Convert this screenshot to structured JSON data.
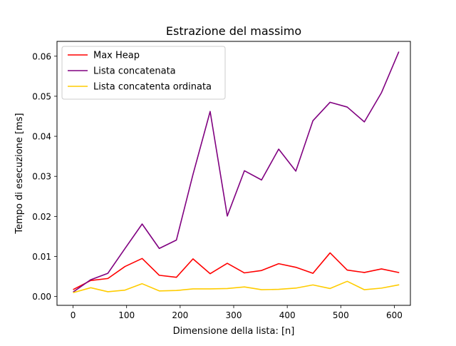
{
  "chart_data": {
    "type": "line",
    "title": "Estrazione del massimo",
    "xlabel": "Dimensione della lista: [n]",
    "ylabel": "Tempo di esecuzione [ms]",
    "xlim": [
      -30,
      630
    ],
    "ylim": [
      -0.0022,
      0.0637
    ],
    "xticks": [
      0,
      100,
      200,
      300,
      400,
      500,
      600
    ],
    "yticks": [
      0.0,
      0.01,
      0.02,
      0.03,
      0.04,
      0.05,
      0.06
    ],
    "ytick_labels": [
      "0.00",
      "0.01",
      "0.02",
      "0.03",
      "0.04",
      "0.05",
      "0.06"
    ],
    "grid": false,
    "legend_position": "top-left",
    "x": [
      1,
      33,
      65,
      97,
      129,
      161,
      193,
      224,
      256,
      288,
      320,
      352,
      384,
      416,
      448,
      480,
      512,
      544,
      576,
      608
    ],
    "series": [
      {
        "name": "Max Heap",
        "color": "#ff0000",
        "values": [
          0.0018,
          0.004,
          0.0045,
          0.0075,
          0.0095,
          0.0053,
          0.0048,
          0.0094,
          0.0057,
          0.0083,
          0.0059,
          0.0065,
          0.0082,
          0.0073,
          0.0058,
          0.0109,
          0.0066,
          0.006,
          0.0069,
          0.006
        ]
      },
      {
        "name": "Lista concatenata",
        "color": "#800080",
        "values": [
          0.0012,
          0.0042,
          0.0058,
          0.012,
          0.0181,
          0.012,
          0.0141,
          0.0305,
          0.0462,
          0.0201,
          0.0314,
          0.0291,
          0.0368,
          0.0313,
          0.0439,
          0.0485,
          0.0473,
          0.0436,
          0.0509,
          0.061
        ]
      },
      {
        "name": "Lista concatenta ordinata",
        "color": "#ffcc00",
        "values": [
          0.001,
          0.0022,
          0.0012,
          0.0016,
          0.0032,
          0.0014,
          0.0015,
          0.0019,
          0.0019,
          0.002,
          0.0024,
          0.0017,
          0.0018,
          0.0021,
          0.0029,
          0.002,
          0.0038,
          0.0017,
          0.0021,
          0.0029
        ]
      }
    ]
  }
}
